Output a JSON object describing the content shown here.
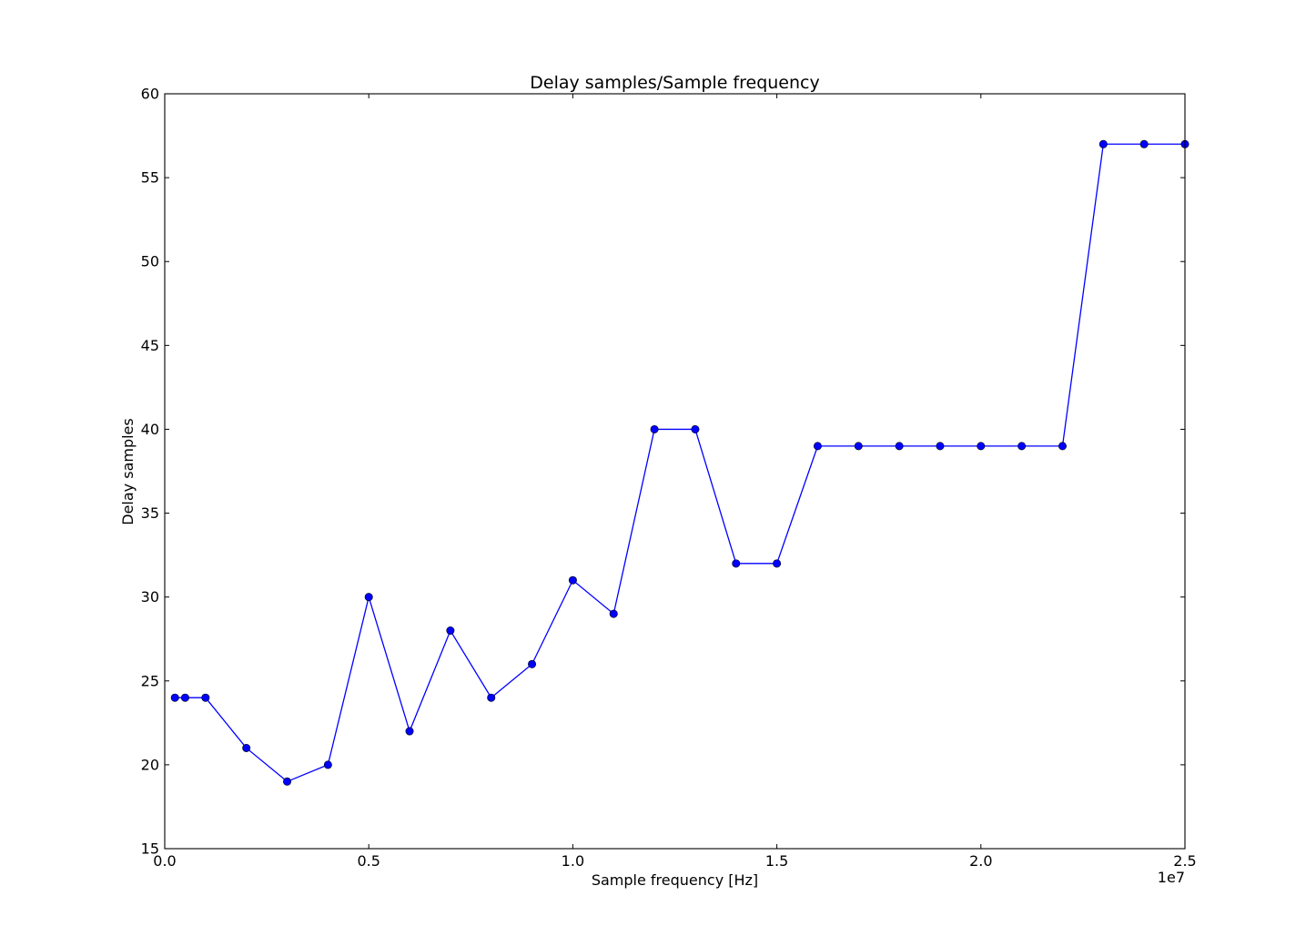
{
  "chart_data": {
    "type": "line",
    "title": "Delay samples/Sample frequency",
    "xlabel": "Sample frequency [Hz]",
    "ylabel": "Delay samples",
    "x_offset_label": "1e7",
    "xlim": [
      0,
      25000000
    ],
    "ylim": [
      15,
      60
    ],
    "x_ticks": [
      0,
      5000000,
      10000000,
      15000000,
      20000000,
      25000000
    ],
    "x_tick_labels": [
      "0.0",
      "0.5",
      "1.0",
      "1.5",
      "2.0",
      "2.5"
    ],
    "y_ticks": [
      15,
      20,
      25,
      30,
      35,
      40,
      45,
      50,
      55,
      60
    ],
    "y_tick_labels": [
      "15",
      "20",
      "25",
      "30",
      "35",
      "40",
      "45",
      "50",
      "55",
      "60"
    ],
    "grid": false,
    "legend": "none",
    "series": [
      {
        "color": "#0000ff",
        "marker": "circle",
        "x": [
          250000,
          500000,
          1000000,
          2000000,
          3000000,
          4000000,
          5000000,
          6000000,
          7000000,
          8000000,
          9000000,
          10000000,
          11000000,
          12000000,
          13000000,
          14000000,
          15000000,
          16000000,
          17000000,
          18000000,
          19000000,
          20000000,
          21000000,
          22000000,
          23000000,
          24000000,
          25000000
        ],
        "y": [
          24,
          24,
          24,
          21,
          19,
          20,
          30,
          22,
          28,
          24,
          26,
          31,
          29,
          40,
          40,
          32,
          32,
          39,
          39,
          39,
          39,
          39,
          39,
          39,
          57,
          57,
          57
        ]
      }
    ]
  }
}
